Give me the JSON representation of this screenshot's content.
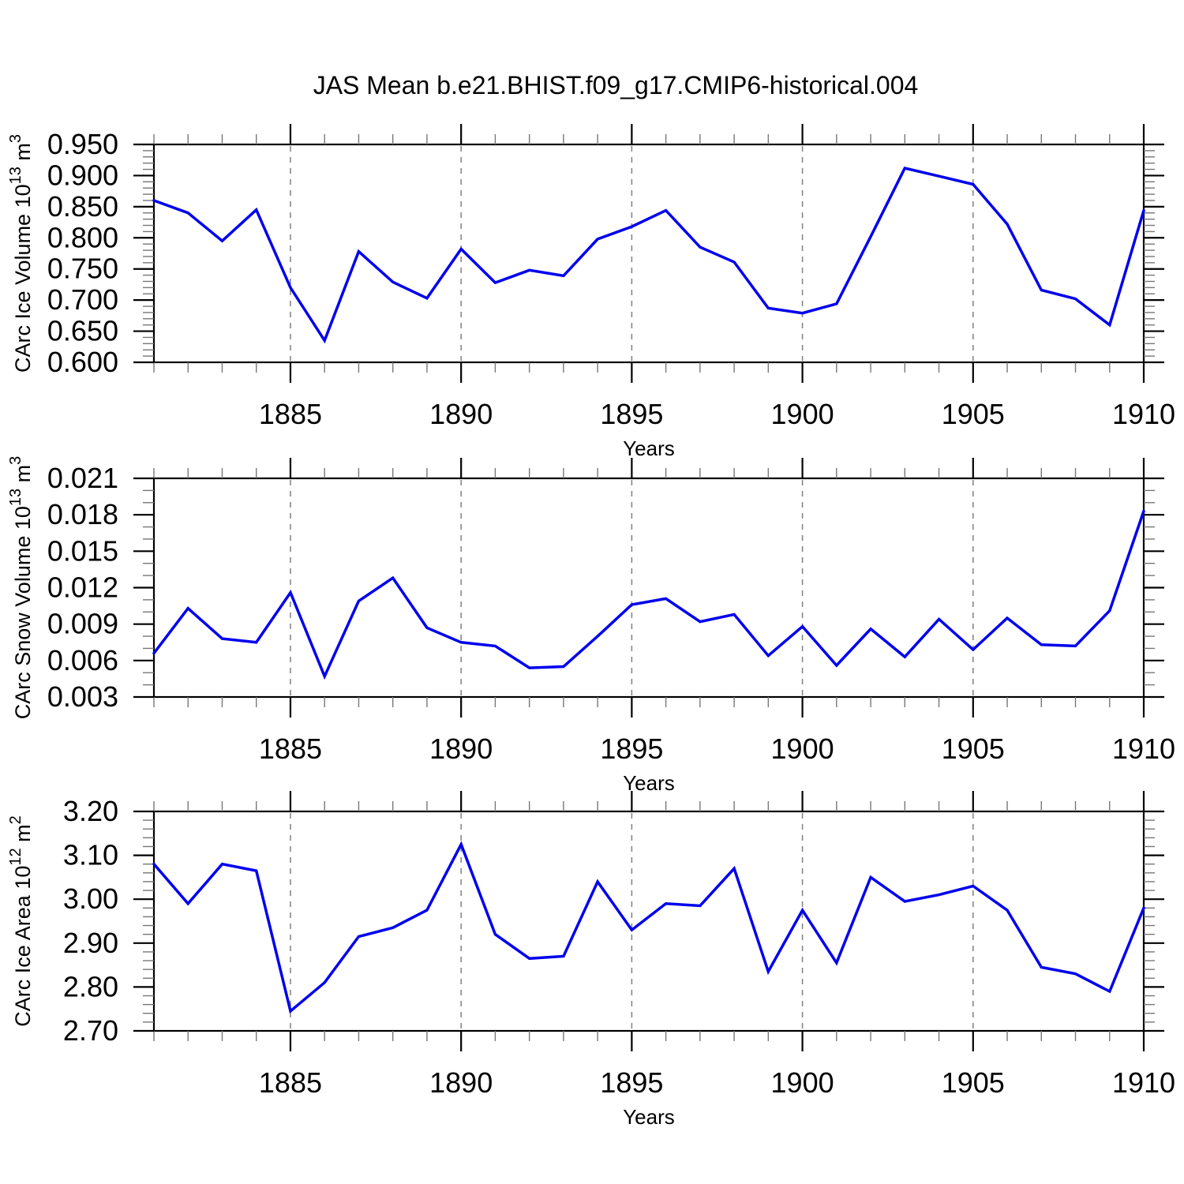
{
  "title": "JAS Mean b.e21.BHIST.f09_g17.CMIP6-historical.004",
  "colors": {
    "line": "#0000EE",
    "grid": "#808080",
    "axis": "#000000",
    "minor_tick": "#777777"
  },
  "chart_data": [
    {
      "type": "line",
      "name": "ice-volume",
      "ylabel": "CArc Ice Volume 10^13 m^3",
      "xlabel": "Years",
      "ylim": [
        0.6,
        0.95
      ],
      "y_major_step": 0.05,
      "y_minor_step": 0.01,
      "y_decimals": 3,
      "xlim": [
        1881,
        1910
      ],
      "x_major_ticks": [
        1885,
        1890,
        1895,
        1900,
        1905,
        1910
      ],
      "x_grid_years": [
        1885,
        1890,
        1895,
        1900,
        1905
      ],
      "x": [
        1881,
        1882,
        1883,
        1884,
        1885,
        1886,
        1887,
        1888,
        1889,
        1890,
        1891,
        1892,
        1893,
        1894,
        1895,
        1896,
        1897,
        1898,
        1899,
        1900,
        1901,
        1902,
        1903,
        1904,
        1905,
        1906,
        1907,
        1908,
        1909,
        1910
      ],
      "values": [
        0.86,
        0.84,
        0.795,
        0.845,
        0.72,
        0.635,
        0.778,
        0.729,
        0.703,
        0.782,
        0.728,
        0.748,
        0.739,
        0.798,
        0.818,
        0.844,
        0.785,
        0.761,
        0.687,
        0.679,
        0.694,
        0.802,
        0.912,
        0.899,
        0.886,
        0.822,
        0.716,
        0.702,
        0.66,
        0.844
      ]
    },
    {
      "type": "line",
      "name": "snow-volume",
      "ylabel": "CArc Snow Volume 10^13 m^3",
      "xlabel": "Years",
      "ylim": [
        0.003,
        0.021
      ],
      "y_major_step": 0.003,
      "y_minor_step": 0.001,
      "y_decimals": 3,
      "xlim": [
        1881,
        1910
      ],
      "x_major_ticks": [
        1885,
        1890,
        1895,
        1900,
        1905,
        1910
      ],
      "x_grid_years": [
        1885,
        1890,
        1895,
        1900,
        1905
      ],
      "x": [
        1881,
        1882,
        1883,
        1884,
        1885,
        1886,
        1887,
        1888,
        1889,
        1890,
        1891,
        1892,
        1893,
        1894,
        1895,
        1896,
        1897,
        1898,
        1899,
        1900,
        1901,
        1902,
        1903,
        1904,
        1905,
        1906,
        1907,
        1908,
        1909,
        1910
      ],
      "values": [
        0.0066,
        0.0103,
        0.0078,
        0.0075,
        0.0116,
        0.0047,
        0.0109,
        0.0128,
        0.0087,
        0.0075,
        0.0072,
        0.0054,
        0.0055,
        0.008,
        0.0106,
        0.0111,
        0.0092,
        0.0098,
        0.0064,
        0.0088,
        0.0056,
        0.0086,
        0.0063,
        0.0094,
        0.0069,
        0.0095,
        0.0073,
        0.0072,
        0.0101,
        0.0183
      ]
    },
    {
      "type": "line",
      "name": "ice-area",
      "ylabel": "CArc Ice Area 10^12 m^2",
      "xlabel": "Years",
      "ylim": [
        2.7,
        3.2
      ],
      "y_major_step": 0.1,
      "y_minor_step": 0.02,
      "y_decimals": 2,
      "xlim": [
        1881,
        1910
      ],
      "x_major_ticks": [
        1885,
        1890,
        1895,
        1900,
        1905,
        1910
      ],
      "x_grid_years": [
        1885,
        1890,
        1895,
        1900,
        1905
      ],
      "x": [
        1881,
        1882,
        1883,
        1884,
        1885,
        1886,
        1887,
        1888,
        1889,
        1890,
        1891,
        1892,
        1893,
        1894,
        1895,
        1896,
        1897,
        1898,
        1899,
        1900,
        1901,
        1902,
        1903,
        1904,
        1905,
        1906,
        1907,
        1908,
        1909,
        1910
      ],
      "values": [
        3.08,
        2.99,
        3.08,
        3.065,
        2.745,
        2.81,
        2.915,
        2.935,
        2.975,
        3.125,
        2.92,
        2.865,
        2.87,
        3.04,
        2.93,
        2.99,
        2.985,
        3.07,
        2.835,
        2.975,
        2.855,
        3.05,
        2.995,
        3.01,
        3.03,
        2.975,
        2.845,
        2.83,
        2.79,
        2.98
      ]
    }
  ]
}
